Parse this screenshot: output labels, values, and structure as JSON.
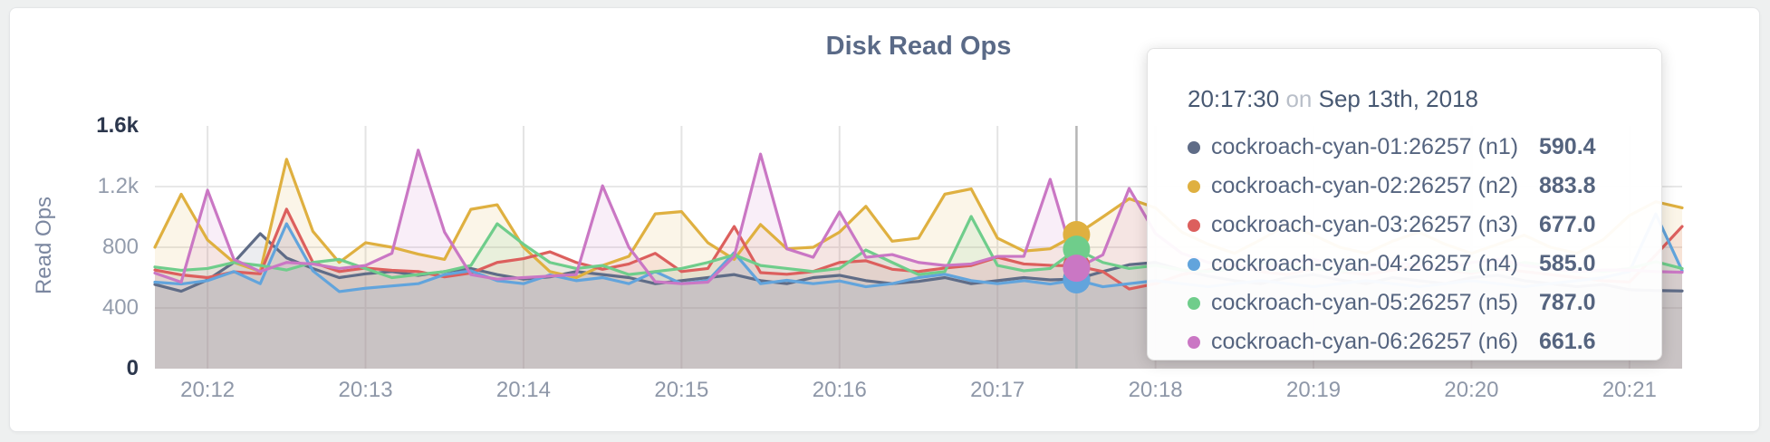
{
  "page": {
    "background": "#eef0f0"
  },
  "header": {
    "title": "Disk Read Ops"
  },
  "axes": {
    "y_label": "Read Ops",
    "y_ticks": [
      {
        "label": "1.6k",
        "value": 1600,
        "strong": true
      },
      {
        "label": "1.2k",
        "value": 1200,
        "strong": false
      },
      {
        "label": "800",
        "value": 800,
        "strong": false
      },
      {
        "label": "400",
        "value": 400,
        "strong": false
      },
      {
        "label": "0",
        "value": 0,
        "strong": true
      }
    ],
    "x_ticks": [
      "20:12",
      "20:13",
      "20:14",
      "20:15",
      "20:16",
      "20:17",
      "20:18",
      "20:19",
      "20:20",
      "20:21"
    ]
  },
  "tooltip": {
    "time": "20:17:30",
    "on_word": "on",
    "date": "Sep 13th, 2018",
    "rows": [
      {
        "name": "cockroach-cyan-01:26257 (n1)",
        "value": "590.4",
        "color": "#5f6c87"
      },
      {
        "name": "cockroach-cyan-02:26257 (n2)",
        "value": "883.8",
        "color": "#dfb040"
      },
      {
        "name": "cockroach-cyan-03:26257 (n3)",
        "value": "677.0",
        "color": "#dc5f5d"
      },
      {
        "name": "cockroach-cyan-04:26257 (n4)",
        "value": "585.0",
        "color": "#62a4dc"
      },
      {
        "name": "cockroach-cyan-05:26257 (n5)",
        "value": "787.0",
        "color": "#6fcd8b"
      },
      {
        "name": "cockroach-cyan-06:26257 (n6)",
        "value": "661.6",
        "color": "#ca77c4"
      }
    ]
  },
  "chart_data": {
    "type": "line",
    "title": "Disk Read Ops",
    "xlabel": "",
    "ylabel": "Read Ops",
    "ylim": [
      0,
      1600
    ],
    "grid": true,
    "legend_position": "tooltip",
    "x_domain": [
      "20:11:40",
      "20:21:20"
    ],
    "hover": {
      "x": "20:17:30"
    },
    "x": [
      "20:11:40",
      "20:11:50",
      "20:12:00",
      "20:12:10",
      "20:12:20",
      "20:12:30",
      "20:12:40",
      "20:12:50",
      "20:13:00",
      "20:13:10",
      "20:13:20",
      "20:13:30",
      "20:13:40",
      "20:13:50",
      "20:14:00",
      "20:14:10",
      "20:14:20",
      "20:14:30",
      "20:14:40",
      "20:14:50",
      "20:15:00",
      "20:15:10",
      "20:15:20",
      "20:15:30",
      "20:15:40",
      "20:15:50",
      "20:16:00",
      "20:16:10",
      "20:16:20",
      "20:16:30",
      "20:16:40",
      "20:16:50",
      "20:17:00",
      "20:17:10",
      "20:17:20",
      "20:17:30",
      "20:17:40",
      "20:17:50",
      "20:18:00",
      "20:18:10",
      "20:18:20",
      "20:18:30",
      "20:18:40",
      "20:18:50",
      "20:19:00",
      "20:19:10",
      "20:19:20",
      "20:19:30",
      "20:19:40",
      "20:19:50",
      "20:20:00",
      "20:20:10",
      "20:20:20",
      "20:20:30",
      "20:20:40",
      "20:20:50",
      "20:21:00",
      "20:21:10",
      "20:21:20"
    ],
    "series": [
      {
        "name": "cockroach-cyan-01:26257 (n1)",
        "color": "#5f6c87",
        "values": [
          555,
          510,
          585,
          700,
          890,
          730,
          660,
          600,
          625,
          640,
          615,
          640,
          660,
          620,
          590,
          605,
          640,
          620,
          600,
          560,
          580,
          600,
          620,
          580,
          560,
          600,
          615,
          580,
          560,
          575,
          600,
          560,
          580,
          600,
          585,
          590.4,
          640,
          685,
          700,
          650,
          610,
          580,
          560,
          600,
          620,
          585,
          560,
          600,
          580,
          560,
          600,
          615,
          580,
          560,
          540,
          555,
          520,
          515,
          512
        ]
      },
      {
        "name": "cockroach-cyan-02:26257 (n2)",
        "color": "#dfb040",
        "values": [
          800,
          1150,
          848,
          700,
          640,
          1380,
          905,
          700,
          830,
          800,
          755,
          720,
          1050,
          1080,
          800,
          640,
          600,
          680,
          740,
          1020,
          1035,
          830,
          720,
          950,
          790,
          800,
          900,
          1070,
          840,
          860,
          1150,
          1185,
          860,
          775,
          790,
          883.8,
          1000,
          1120,
          1060,
          900,
          820,
          760,
          850,
          950,
          880,
          800,
          760,
          840,
          900,
          820,
          760,
          820,
          880,
          800,
          760,
          850,
          1010,
          1100,
          1060
        ]
      },
      {
        "name": "cockroach-cyan-03:26257 (n3)",
        "color": "#dc5f5d",
        "values": [
          650,
          618,
          600,
          638,
          625,
          1051,
          700,
          640,
          663,
          648,
          640,
          605,
          630,
          700,
          725,
          770,
          700,
          655,
          690,
          760,
          640,
          660,
          937,
          633,
          622,
          640,
          700,
          711,
          655,
          640,
          663,
          680,
          734,
          690,
          681,
          677,
          640,
          525,
          560,
          620,
          650,
          680,
          640,
          620,
          660,
          640,
          620,
          650,
          680,
          650,
          630,
          660,
          640,
          620,
          600,
          580,
          570,
          750,
          937
        ]
      },
      {
        "name": "cockroach-cyan-04:26257 (n4)",
        "color": "#62a4dc",
        "values": [
          570,
          558,
          580,
          640,
          560,
          955,
          645,
          508,
          530,
          545,
          560,
          620,
          645,
          580,
          560,
          618,
          580,
          600,
          560,
          640,
          560,
          580,
          764,
          560,
          582,
          560,
          578,
          540,
          560,
          600,
          622,
          580,
          560,
          580,
          558,
          585,
          540,
          560,
          580,
          560,
          540,
          560,
          580,
          560,
          540,
          560,
          580,
          560,
          540,
          560,
          580,
          560,
          540,
          560,
          580,
          600,
          640,
          1020,
          645
        ]
      },
      {
        "name": "cockroach-cyan-05:26257 (n5)",
        "color": "#6fcd8b",
        "values": [
          670,
          648,
          660,
          700,
          680,
          650,
          700,
          720,
          660,
          600,
          620,
          640,
          680,
          955,
          820,
          700,
          660,
          680,
          620,
          640,
          660,
          700,
          750,
          680,
          660,
          640,
          660,
          782,
          700,
          620,
          640,
          1003,
          680,
          645,
          660,
          787,
          700,
          660,
          680,
          650,
          640,
          660,
          700,
          680,
          660,
          640,
          660,
          700,
          680,
          660,
          640,
          660,
          700,
          680,
          660,
          640,
          660,
          705,
          660
        ]
      },
      {
        "name": "cockroach-cyan-06:26257 (n6)",
        "color": "#ca77c4",
        "values": [
          630,
          570,
          1176,
          720,
          640,
          700,
          690,
          660,
          680,
          760,
          1440,
          900,
          620,
          590,
          600,
          610,
          620,
          1205,
          800,
          573,
          560,
          570,
          740,
          1414,
          790,
          734,
          1033,
          734,
          752,
          700,
          680,
          690,
          740,
          740,
          1248,
          661.6,
          750,
          1188,
          890,
          760,
          700,
          680,
          660,
          700,
          720,
          680,
          660,
          700,
          680,
          660,
          700,
          720,
          680,
          660,
          640,
          650,
          650,
          640,
          635
        ]
      }
    ],
    "style": {
      "line_width": 3.2,
      "fill_opacity": 0.12,
      "grid_color_h": "#e8e8e8",
      "grid_color_v": "#e4e4e4",
      "hover_line_color": "#b5b5b5",
      "hover_dot_radius": 15
    }
  }
}
